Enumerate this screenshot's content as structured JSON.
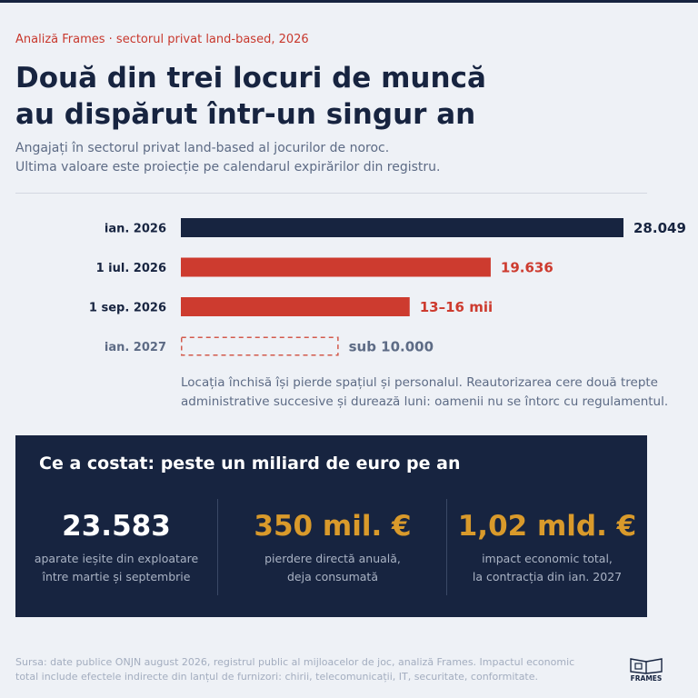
{
  "header": {
    "kicker": "Analiză Frames · sectorul privat land-based, 2026",
    "title_line1": "Două din trei locuri de muncă",
    "title_line2": "au dispărut într-un singur an",
    "subtitle_line1": "Angajați în sectorul privat land-based al jocurilor de noroc.",
    "subtitle_line2": "Ultima valoare este proiecție pe calendarul expirărilor din registru."
  },
  "chart_data": {
    "type": "bar",
    "orientation": "horizontal",
    "categories": [
      "ian. 2026",
      "1 iul. 2026",
      "1 sep. 2026",
      "ian. 2027"
    ],
    "values": [
      28049,
      19636,
      14500,
      10000
    ],
    "value_labels": [
      "28.049",
      "19.636",
      "13–16 mii",
      "sub 10.000"
    ],
    "bar_styles": [
      "actual",
      "actual",
      "estimate",
      "projection"
    ],
    "colors": {
      "navy": "#172440",
      "red": "#cd3b2f",
      "projection": "#d35a4c",
      "muted": "#5d6b85"
    },
    "xlim": [
      0,
      28049
    ],
    "title": "",
    "xlabel": "",
    "ylabel": ""
  },
  "note": {
    "line1": "Locația închisă își pierde spațiul și personalul. Reautorizarea cere două trepte",
    "line2": "administrative succesive și durează luni: oamenii nu se întorc cu regulamentul."
  },
  "panel": {
    "title": "Ce a costat: peste un miliard de euro pe an",
    "stats": [
      {
        "value": "23.583",
        "desc_line1": "aparate ieșite din exploatare",
        "desc_line2": "între martie și septembrie",
        "color": "#ffffff"
      },
      {
        "value": "350 mil. €",
        "desc_line1": "pierdere directă anuală,",
        "desc_line2": "deja consumată",
        "color": "#d99a2b"
      },
      {
        "value": "1,02 mld. €",
        "desc_line1": "impact economic total,",
        "desc_line2": "la contracția din ian. 2027",
        "color": "#d99a2b"
      }
    ]
  },
  "footer": {
    "source_line1": "Sursa: date publice ONJN august 2026, registrul public al mijloacelor de joc, analiză Frames. Impactul economic",
    "source_line2": "total include efectele indirecte din lanțul de furnizori: chirii, telecomunicații, IT, securitate, conformitate.",
    "logo_text": "FRAMES",
    "logo_icon": "frames-logo-icon"
  }
}
